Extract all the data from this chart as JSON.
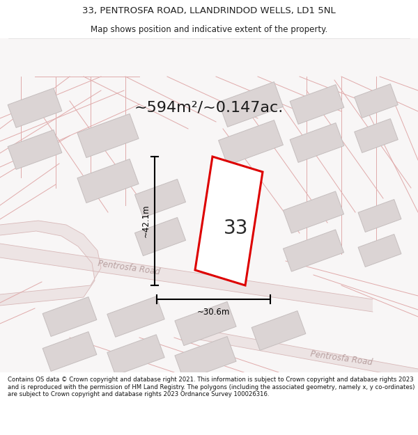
{
  "title_line1": "33, PENTROSFA ROAD, LLANDRINDOD WELLS, LD1 5NL",
  "title_line2": "Map shows position and indicative extent of the property.",
  "area_label": "~594m²/~0.147ac.",
  "property_number": "33",
  "dim_height": "~42.1m",
  "dim_width": "~30.6m",
  "road_label1": "Pentrosfa Road",
  "road_label2": "Pentrosfa Road",
  "footer_text": "Contains OS data © Crown copyright and database right 2021. This information is subject to Crown copyright and database rights 2023 and is reproduced with the permission of HM Land Registry. The polygons (including the associated geometry, namely x, y co-ordinates) are subject to Crown copyright and database rights 2023 Ordnance Survey 100026316.",
  "plot_outline_color": "#dd0000",
  "building_fill": "#e0dada",
  "building_edge": "#ccc4c4",
  "street_color": "#e8b8b8",
  "road_fill": "#f0e8e8",
  "road_fill2": "#ede8e8",
  "text_color": "#222222",
  "road_text_color": "#c0aaaa",
  "map_bg": "#fafafa",
  "title_bg": "#ffffff",
  "footer_bg": "#ffffff"
}
